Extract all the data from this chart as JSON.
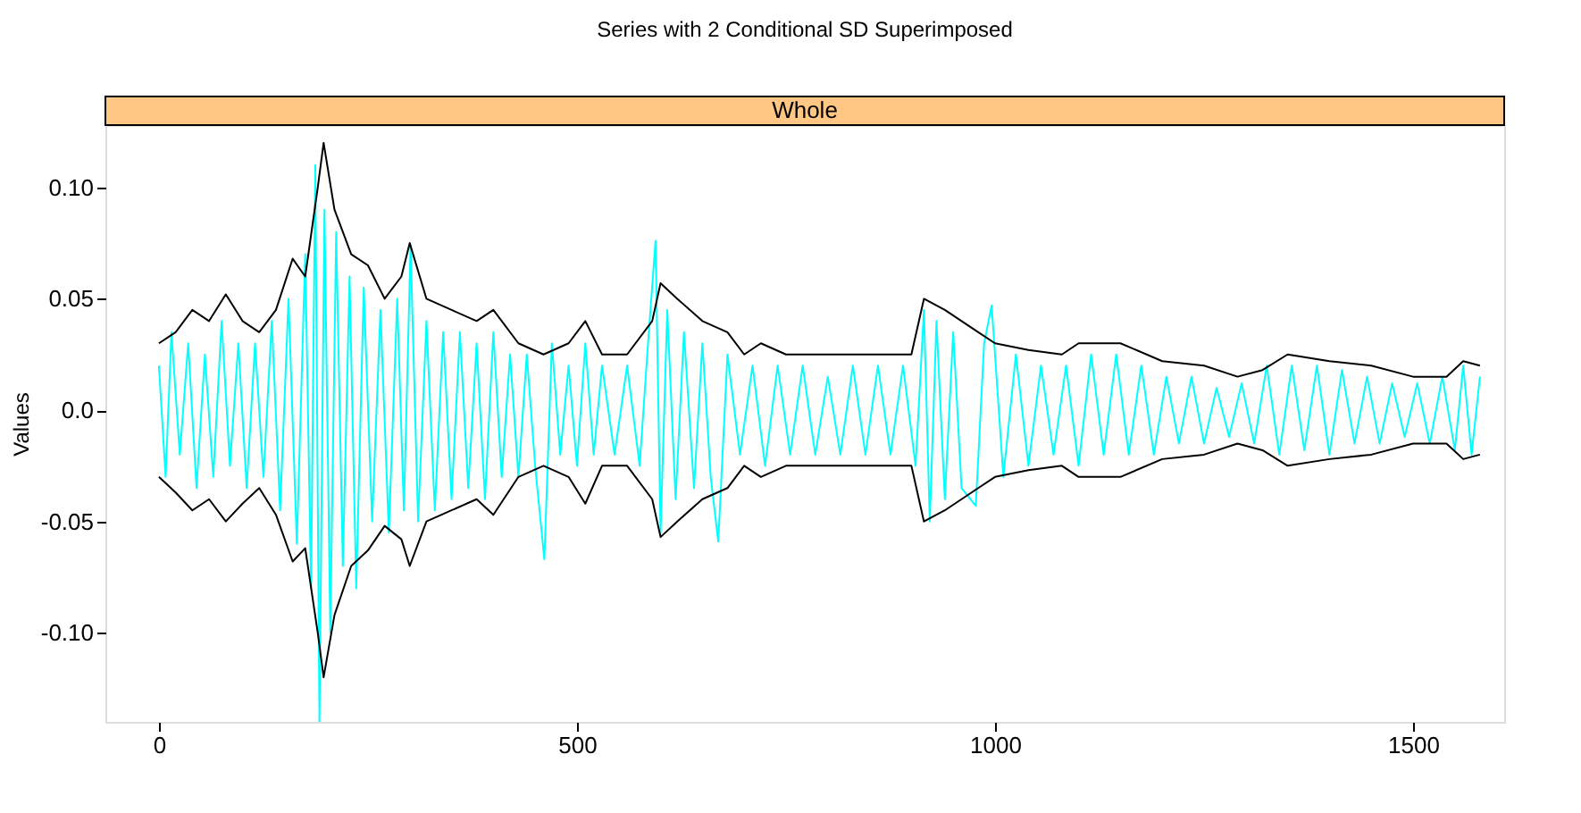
{
  "chart_data": {
    "type": "line",
    "title": "Series with 2 Conditional SD Superimposed",
    "ylabel": "Values",
    "annotations": [
      "Whole"
    ],
    "xlim": [
      -64,
      1609
    ],
    "ylim": [
      -0.14,
      0.128
    ],
    "xticks": [
      0,
      500,
      1000,
      1500
    ],
    "yticks": [
      {
        "value": -0.1,
        "label": "-0.10"
      },
      {
        "value": -0.05,
        "label": "-0.05"
      },
      {
        "value": 0.0,
        "label": "0.0"
      },
      {
        "value": 0.05,
        "label": "0.05"
      },
      {
        "value": 0.1,
        "label": "0.10"
      }
    ],
    "grid": false,
    "line_style": "solid",
    "series": [
      {
        "color": "#00ffff",
        "x": [
          0,
          8,
          15,
          25,
          35,
          45,
          55,
          65,
          75,
          85,
          95,
          105,
          115,
          125,
          135,
          145,
          155,
          165,
          175,
          182,
          187,
          192,
          198,
          205,
          212,
          220,
          228,
          236,
          245,
          255,
          265,
          275,
          285,
          293,
          301,
          310,
          320,
          330,
          340,
          350,
          360,
          370,
          380,
          390,
          400,
          410,
          420,
          430,
          440,
          450,
          461,
          470,
          480,
          490,
          500,
          510,
          520,
          530,
          545,
          560,
          575,
          585,
          594,
          600,
          608,
          618,
          628,
          640,
          650,
          660,
          669,
          680,
          695,
          710,
          725,
          740,
          755,
          770,
          785,
          800,
          815,
          830,
          845,
          860,
          875,
          890,
          905,
          915,
          922,
          930,
          940,
          950,
          960,
          977,
          987,
          996,
          1010,
          1025,
          1040,
          1055,
          1070,
          1085,
          1100,
          1115,
          1130,
          1145,
          1160,
          1175,
          1190,
          1205,
          1220,
          1235,
          1250,
          1265,
          1280,
          1295,
          1310,
          1325,
          1340,
          1355,
          1370,
          1385,
          1400,
          1415,
          1430,
          1445,
          1460,
          1475,
          1490,
          1505,
          1520,
          1535,
          1550,
          1560,
          1570,
          1580
        ],
        "values": [
          0.02,
          -0.03,
          0.035,
          -0.02,
          0.03,
          -0.035,
          0.025,
          -0.03,
          0.04,
          -0.025,
          0.03,
          -0.035,
          0.03,
          -0.03,
          0.04,
          -0.045,
          0.05,
          -0.06,
          0.07,
          -0.08,
          0.11,
          -0.14,
          0.09,
          -0.1,
          0.08,
          -0.07,
          0.06,
          -0.08,
          0.055,
          -0.05,
          0.045,
          -0.055,
          0.05,
          -0.045,
          0.074,
          -0.05,
          0.04,
          -0.045,
          0.035,
          -0.04,
          0.035,
          -0.035,
          0.03,
          -0.04,
          0.035,
          -0.03,
          0.025,
          -0.03,
          0.025,
          -0.025,
          -0.067,
          0.03,
          -0.02,
          0.02,
          -0.025,
          0.03,
          -0.02,
          0.02,
          -0.02,
          0.02,
          -0.025,
          0.03,
          0.076,
          -0.055,
          0.045,
          -0.04,
          0.035,
          -0.035,
          0.03,
          -0.03,
          -0.059,
          0.025,
          -0.02,
          0.02,
          -0.025,
          0.02,
          -0.02,
          0.02,
          -0.02,
          0.015,
          -0.02,
          0.02,
          -0.02,
          0.02,
          -0.02,
          0.02,
          -0.025,
          0.045,
          -0.05,
          0.04,
          -0.04,
          0.035,
          -0.035,
          -0.043,
          0.03,
          0.047,
          -0.03,
          0.025,
          -0.025,
          0.02,
          -0.02,
          0.02,
          -0.025,
          0.025,
          -0.02,
          0.025,
          -0.02,
          0.02,
          -0.02,
          0.015,
          -0.015,
          0.015,
          -0.015,
          0.01,
          -0.012,
          0.012,
          -0.015,
          0.02,
          -0.02,
          0.02,
          -0.018,
          0.02,
          -0.02,
          0.018,
          -0.015,
          0.015,
          -0.015,
          0.012,
          -0.012,
          0.012,
          -0.015,
          0.015,
          -0.018,
          0.02,
          -0.02,
          0.015
        ]
      },
      {
        "color": "#000000",
        "x": [
          0,
          20,
          40,
          60,
          80,
          100,
          120,
          140,
          160,
          175,
          190,
          197,
          210,
          230,
          250,
          270,
          290,
          300,
          320,
          350,
          380,
          400,
          430,
          460,
          490,
          510,
          530,
          560,
          590,
          600,
          620,
          650,
          680,
          700,
          720,
          750,
          800,
          850,
          900,
          915,
          940,
          980,
          1000,
          1040,
          1080,
          1100,
          1150,
          1200,
          1250,
          1290,
          1320,
          1350,
          1400,
          1450,
          1500,
          1540,
          1560,
          1580
        ],
        "values": [
          0.03,
          0.035,
          0.045,
          0.04,
          0.052,
          0.04,
          0.035,
          0.045,
          0.068,
          0.06,
          0.1,
          0.12,
          0.09,
          0.07,
          0.065,
          0.05,
          0.06,
          0.075,
          0.05,
          0.045,
          0.04,
          0.045,
          0.03,
          0.025,
          0.03,
          0.04,
          0.025,
          0.025,
          0.04,
          0.057,
          0.05,
          0.04,
          0.035,
          0.025,
          0.03,
          0.025,
          0.025,
          0.025,
          0.025,
          0.05,
          0.045,
          0.035,
          0.03,
          0.027,
          0.025,
          0.03,
          0.03,
          0.022,
          0.02,
          0.015,
          0.018,
          0.025,
          0.022,
          0.02,
          0.015,
          0.015,
          0.022,
          0.02
        ]
      },
      {
        "color": "#000000",
        "x": [
          0,
          20,
          40,
          60,
          80,
          100,
          120,
          140,
          160,
          175,
          190,
          197,
          210,
          230,
          250,
          270,
          290,
          300,
          320,
          350,
          380,
          400,
          430,
          460,
          490,
          510,
          530,
          560,
          590,
          600,
          620,
          650,
          680,
          700,
          720,
          750,
          800,
          850,
          900,
          915,
          940,
          980,
          1000,
          1040,
          1080,
          1100,
          1150,
          1200,
          1250,
          1290,
          1320,
          1350,
          1400,
          1450,
          1500,
          1540,
          1560,
          1580
        ],
        "values": [
          -0.03,
          -0.037,
          -0.045,
          -0.04,
          -0.05,
          -0.042,
          -0.035,
          -0.047,
          -0.068,
          -0.062,
          -0.1,
          -0.12,
          -0.092,
          -0.07,
          -0.063,
          -0.052,
          -0.058,
          -0.07,
          -0.05,
          -0.045,
          -0.04,
          -0.047,
          -0.03,
          -0.025,
          -0.03,
          -0.042,
          -0.025,
          -0.025,
          -0.04,
          -0.057,
          -0.05,
          -0.04,
          -0.035,
          -0.025,
          -0.03,
          -0.025,
          -0.025,
          -0.025,
          -0.025,
          -0.05,
          -0.045,
          -0.035,
          -0.03,
          -0.027,
          -0.025,
          -0.03,
          -0.03,
          -0.022,
          -0.02,
          -0.015,
          -0.018,
          -0.025,
          -0.022,
          -0.02,
          -0.015,
          -0.015,
          -0.022,
          -0.02
        ]
      }
    ]
  }
}
